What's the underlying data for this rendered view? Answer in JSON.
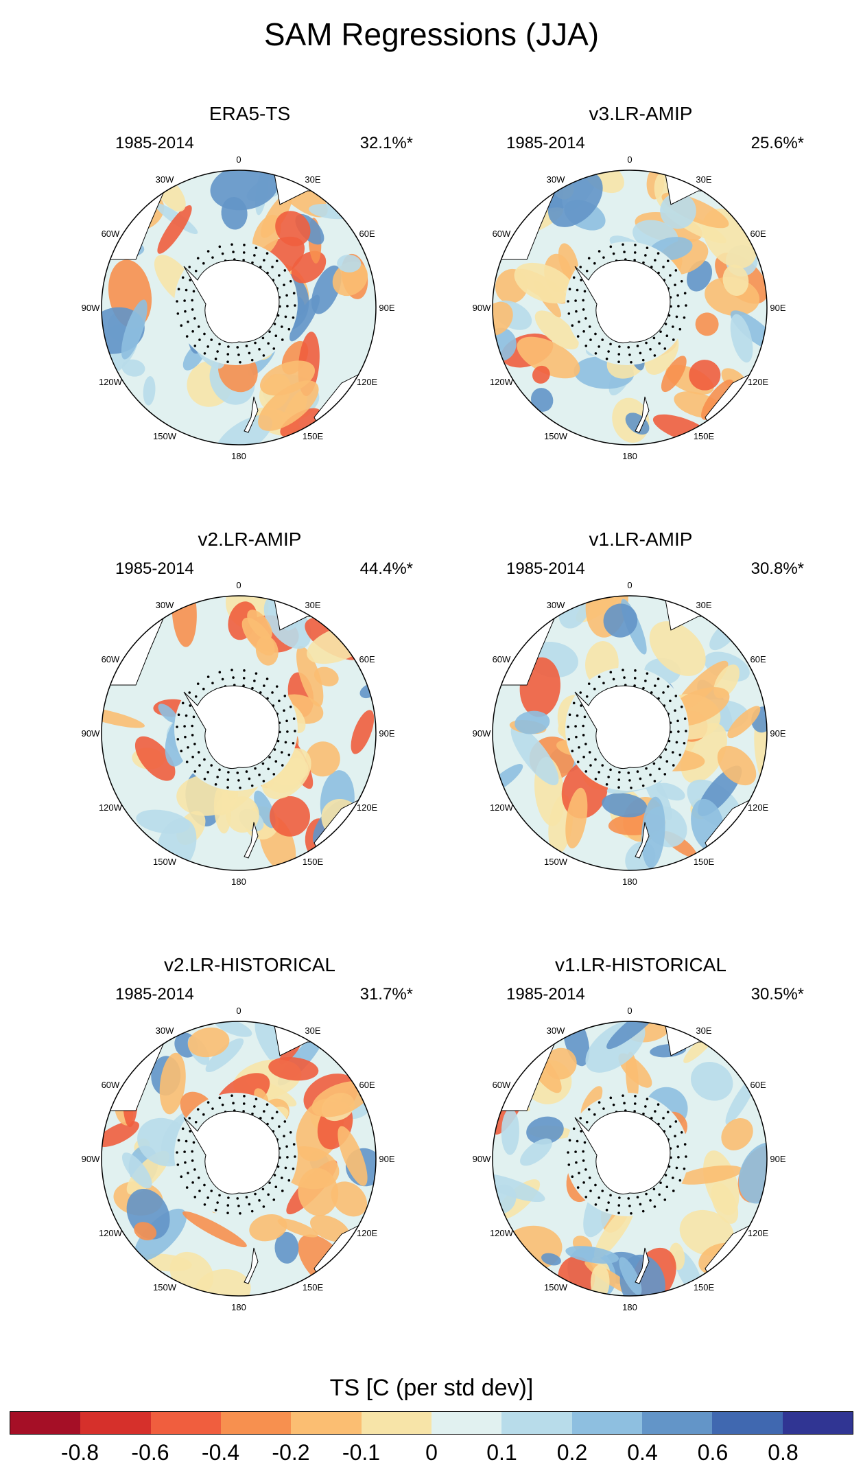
{
  "title": "SAM Regressions (JJA)",
  "lon_labels": [
    "0",
    "30E",
    "60E",
    "90E",
    "120E",
    "150E",
    "180",
    "150W",
    "120W",
    "90W",
    "60W",
    "30W"
  ],
  "panels": [
    {
      "title": "ERA5-TS",
      "years": "1985-2014",
      "percent": "32.1%*"
    },
    {
      "title": "v3.LR-AMIP",
      "years": "1985-2014",
      "percent": "25.6%*"
    },
    {
      "title": "v2.LR-AMIP",
      "years": "1985-2014",
      "percent": "44.4%*"
    },
    {
      "title": "v1.LR-AMIP",
      "years": "1985-2014",
      "percent": "30.8%*"
    },
    {
      "title": "v2.LR-HISTORICAL",
      "years": "1985-2014",
      "percent": "31.7%*"
    },
    {
      "title": "v1.LR-HISTORICAL",
      "years": "1985-2014",
      "percent": "30.5%*"
    }
  ],
  "colorbar": {
    "title": "TS [C (per std dev)]",
    "labels": [
      "-0.8",
      "-0.6",
      "-0.4",
      "-0.2",
      "-0.1",
      "0",
      "0.1",
      "0.2",
      "0.4",
      "0.6",
      "0.8"
    ],
    "colors": [
      "#a50f26",
      "#d6302b",
      "#f05e3e",
      "#f7904f",
      "#fbbe72",
      "#f7e4a8",
      "#e1f1f0",
      "#b8dcea",
      "#8ebfe0",
      "#6395c8",
      "#4068b0",
      "#303593"
    ]
  },
  "chart_data": {
    "type": "heatmap",
    "title": "SAM Regressions (JJA)",
    "projection": "south polar stereographic",
    "variable": "TS [C (per std dev)]",
    "levels": [
      -0.8,
      -0.6,
      -0.4,
      -0.2,
      -0.1,
      0,
      0.1,
      0.2,
      0.4,
      0.6,
      0.8
    ],
    "panels": [
      {
        "name": "ERA5-TS",
        "period": "1985-2014",
        "explained_variance": "32.1%*"
      },
      {
        "name": "v3.LR-AMIP",
        "period": "1985-2014",
        "explained_variance": "25.6%*"
      },
      {
        "name": "v2.LR-AMIP",
        "period": "1985-2014",
        "explained_variance": "44.4%*"
      },
      {
        "name": "v1.LR-AMIP",
        "period": "1985-2014",
        "explained_variance": "30.8%*"
      },
      {
        "name": "v2.LR-HISTORICAL",
        "period": "1985-2014",
        "explained_variance": "31.7%*"
      },
      {
        "name": "v1.LR-HISTORICAL",
        "period": "1985-2014",
        "explained_variance": "30.5%*"
      }
    ]
  }
}
